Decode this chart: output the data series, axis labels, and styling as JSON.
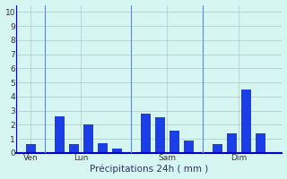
{
  "bar_data": [
    {
      "x": 1,
      "height": 0.6
    },
    {
      "x": 3,
      "height": 2.6
    },
    {
      "x": 4,
      "height": 0.6
    },
    {
      "x": 5,
      "height": 2.0
    },
    {
      "x": 6,
      "height": 0.7
    },
    {
      "x": 7,
      "height": 0.3
    },
    {
      "x": 9,
      "height": 2.8
    },
    {
      "x": 10,
      "height": 2.5
    },
    {
      "x": 11,
      "height": 1.6
    },
    {
      "x": 12,
      "height": 0.9
    },
    {
      "x": 14,
      "height": 0.6
    },
    {
      "x": 15,
      "height": 1.4
    },
    {
      "x": 16,
      "height": 4.5
    },
    {
      "x": 17,
      "height": 1.4
    }
  ],
  "day_lines": [
    2,
    8,
    13
  ],
  "day_labels": [
    {
      "x": 1.0,
      "label": "Ven"
    },
    {
      "x": 4.5,
      "label": "Lun"
    },
    {
      "x": 10.5,
      "label": "Sam"
    },
    {
      "x": 15.5,
      "label": "Dim"
    }
  ],
  "bar_color": "#1a3ee8",
  "background_color": "#d4f5f0",
  "grid_color": "#b0c8c8",
  "axis_color": "#0000cc",
  "sep_line_color": "#6688cc",
  "ylabel_values": [
    0,
    1,
    2,
    3,
    4,
    5,
    6,
    7,
    8,
    9,
    10
  ],
  "ylim": [
    0,
    10.5
  ],
  "xlim": [
    0.0,
    18.5
  ],
  "xlabel": "Précipitations 24h ( mm )"
}
